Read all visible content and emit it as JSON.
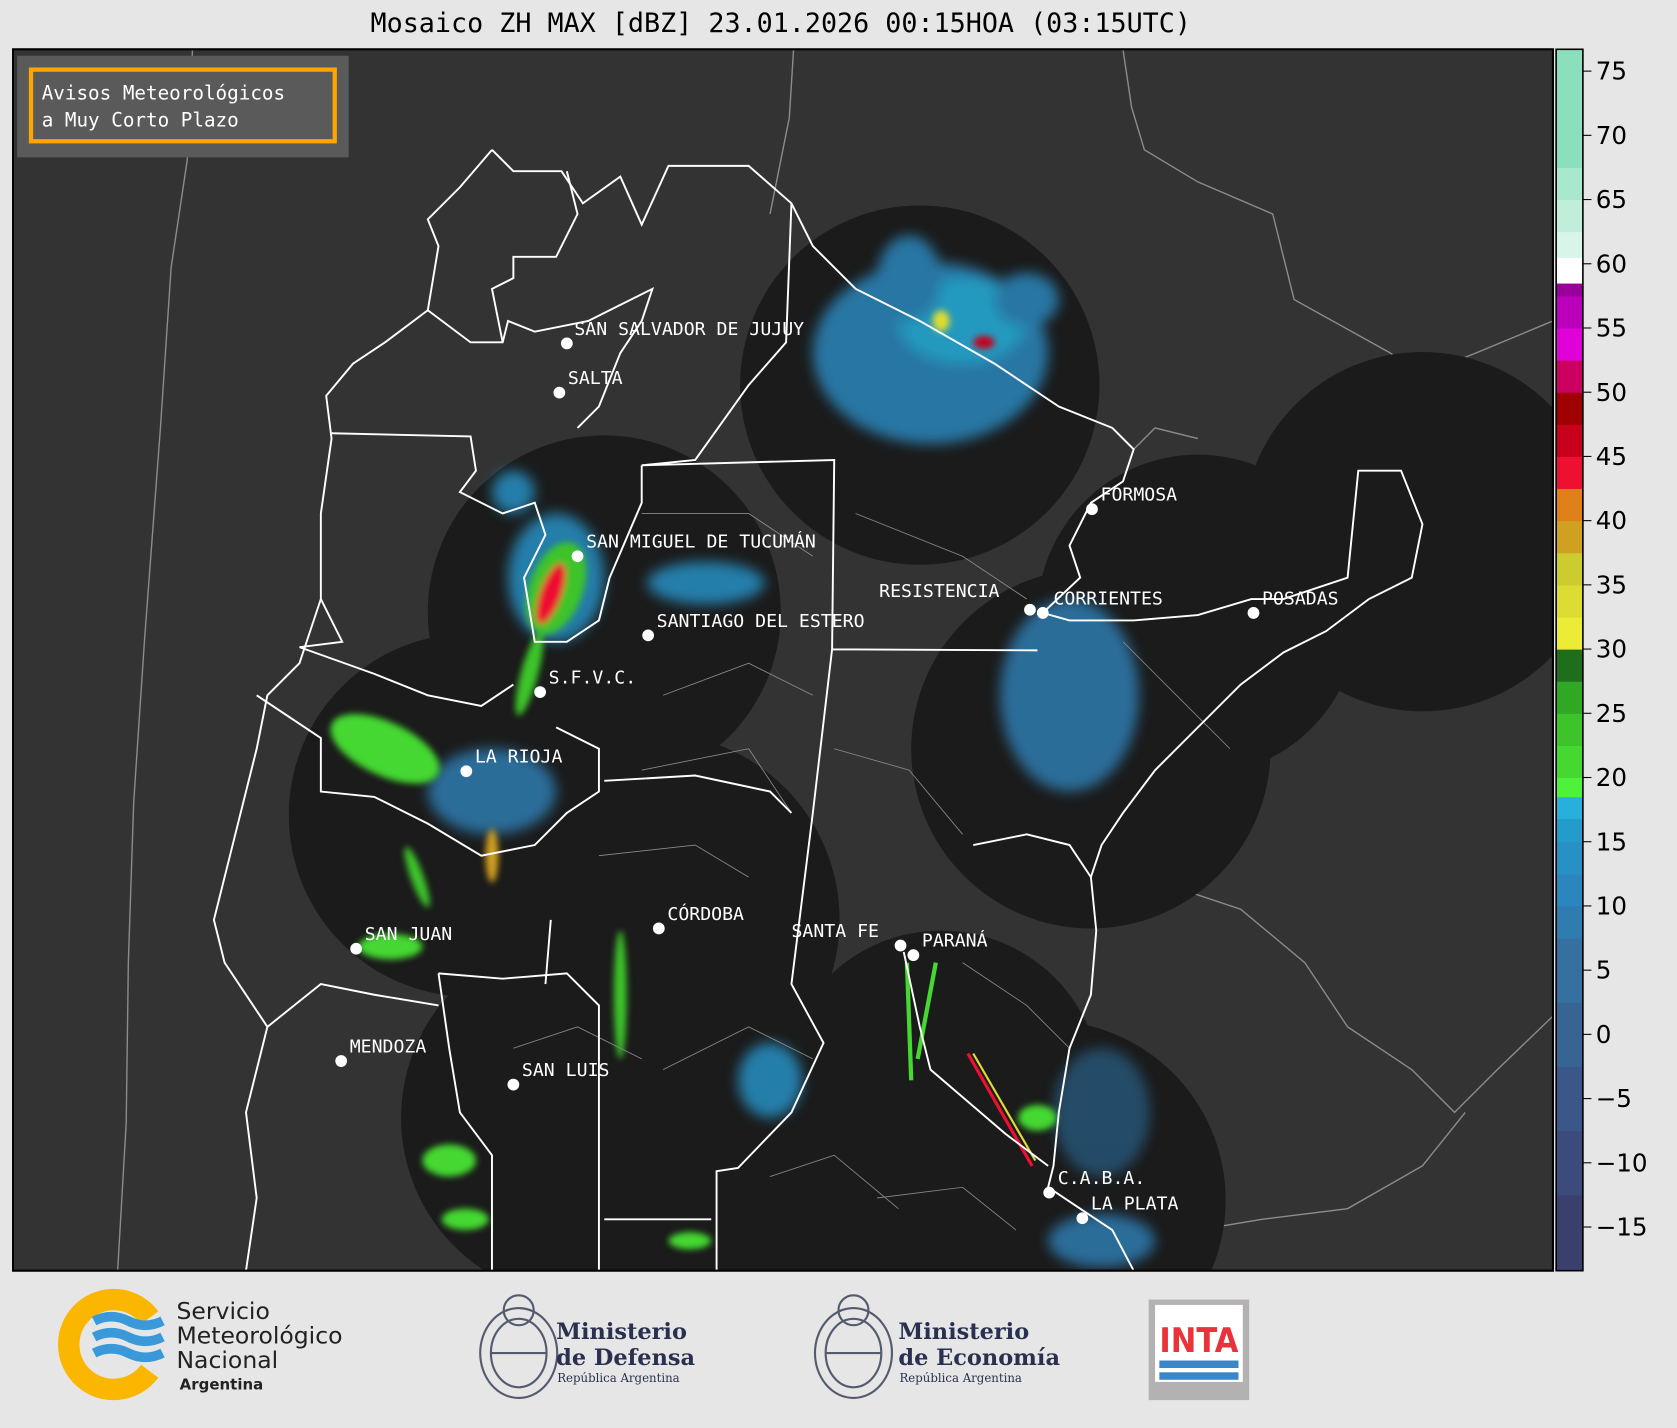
{
  "title": "Mosaico ZH MAX [dBZ] 23.01.2026 00:15HOA (03:15UTC)",
  "warning_box": {
    "line1": "Avisos Meteorológicos",
    "line2": "a Muy Corto Plazo",
    "border_color": "#ffa500"
  },
  "colorbar": {
    "unit": "dBZ",
    "ticks": [
      75,
      70,
      65,
      60,
      55,
      50,
      45,
      40,
      35,
      30,
      25,
      20,
      15,
      10,
      5,
      0,
      -5,
      -10,
      -15
    ],
    "tick_labels": [
      "75",
      "70",
      "65",
      "60",
      "55",
      "50",
      "45",
      "40",
      "35",
      "30",
      "25",
      "20",
      "15",
      "10",
      "5",
      "0",
      "−5",
      "−10",
      "−15"
    ],
    "range": [
      -18.4,
      76.7
    ],
    "bins": [
      [
        -18.4,
        -12.5,
        "#3b3f6e"
      ],
      [
        -12.5,
        -7.5,
        "#3c4a7c"
      ],
      [
        -7.5,
        -2.5,
        "#3b5688"
      ],
      [
        -2.5,
        2.5,
        "#386494"
      ],
      [
        2.5,
        7.5,
        "#3670a0"
      ],
      [
        7.5,
        10,
        "#2e7cb0"
      ],
      [
        10,
        12.5,
        "#2a86bc"
      ],
      [
        12.5,
        15,
        "#2790c4"
      ],
      [
        15,
        16.8,
        "#239ccc"
      ],
      [
        16.8,
        18.5,
        "#27b0dc"
      ],
      [
        18.5,
        20,
        "#4ef23a"
      ],
      [
        20,
        22.5,
        "#45d830"
      ],
      [
        22.5,
        25,
        "#3cc42a"
      ],
      [
        25,
        27.5,
        "#30a824"
      ],
      [
        27.5,
        30,
        "#1f6e1c"
      ],
      [
        30,
        32.5,
        "#ecec38"
      ],
      [
        32.5,
        35,
        "#dcdc32"
      ],
      [
        35,
        37.5,
        "#cccc30"
      ],
      [
        37.5,
        40,
        "#d0a020"
      ],
      [
        40,
        42.5,
        "#e08018"
      ],
      [
        42.5,
        45,
        "#ee1030"
      ],
      [
        45,
        47.5,
        "#c8001c"
      ],
      [
        47.5,
        50,
        "#a00000"
      ],
      [
        50,
        52.5,
        "#cc0060"
      ],
      [
        52.5,
        55,
        "#e000d8"
      ],
      [
        55,
        57.5,
        "#bb00bb"
      ],
      [
        57.5,
        58.5,
        "#990099"
      ],
      [
        58.5,
        60.5,
        "#ffffff"
      ],
      [
        60.5,
        62.5,
        "#d8f5ea"
      ],
      [
        62.5,
        65,
        "#c0eedb"
      ],
      [
        65,
        67.5,
        "#a8e8cf"
      ],
      [
        67.5,
        76.7,
        "#8cdfbd"
      ]
    ]
  },
  "cities": [
    {
      "name": "SAN SALVADOR DE JUJUY"
    },
    {
      "name": "SALTA"
    },
    {
      "name": "SAN MIGUEL DE TUCUMÁN"
    },
    {
      "name": "SANTIAGO DEL ESTERO"
    },
    {
      "name": "S.F.V.C."
    },
    {
      "name": "LA RIOJA"
    },
    {
      "name": "SAN JUAN"
    },
    {
      "name": "MENDOZA"
    },
    {
      "name": "SAN LUIS"
    },
    {
      "name": "CÓRDOBA"
    },
    {
      "name": "SANTA FE"
    },
    {
      "name": "PARANÁ"
    },
    {
      "name": "RESISTENCIA"
    },
    {
      "name": "CORRIENTES"
    },
    {
      "name": "FORMOSA"
    },
    {
      "name": "POSADAS"
    },
    {
      "name": "C.A.B.A."
    },
    {
      "name": "LA PLATA"
    }
  ],
  "footer": {
    "smn": {
      "line1": "Servicio",
      "line2": "Meteorológico",
      "line3": "Nacional",
      "line4": "Argentina"
    },
    "defensa": {
      "line1": "Ministerio",
      "line2": "de Defensa",
      "line3": "República Argentina"
    },
    "economia": {
      "line1": "Ministerio",
      "line2": "de Economía",
      "line3": "República Argentina"
    },
    "inta": {
      "label": "INTA"
    }
  }
}
